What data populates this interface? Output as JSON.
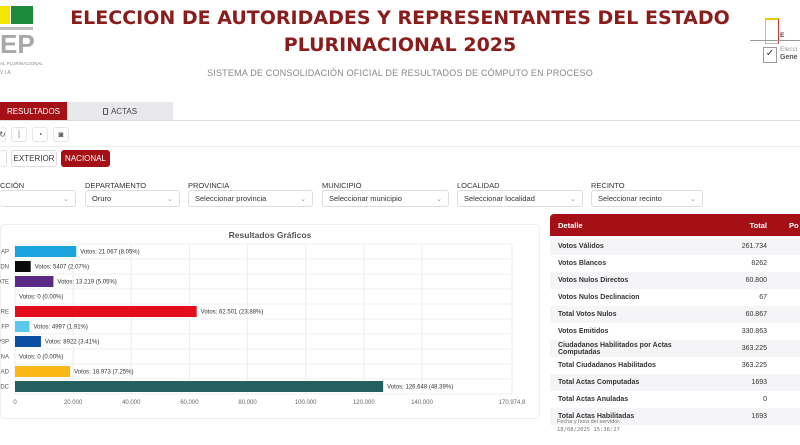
{
  "header": {
    "title_line1": "ELECCION DE AUTORIDADES Y REPRESENTANTES DEL ESTADO",
    "title_line2": "PLURINACIONAL 2025",
    "subtitle": "SISTEMA DE CONSOLIDACIÓN OFICIAL DE RESULTADOS DE CÓMPUTO EN PROCESO",
    "logo_left_text": "EP",
    "logo_left_line1": "AL PLURINACIONAL",
    "logo_left_line2": "V I A",
    "logo_right_line1": "E",
    "logo_right_line2": "Elecci",
    "logo_right_line3": "Gene"
  },
  "tabs": [
    {
      "label": "RESULTADOS",
      "active": true
    },
    {
      "label": "ACTAS",
      "icon": "tablet-icon",
      "active": false
    }
  ],
  "toolbar_icons": [
    "refresh-icon",
    "bar-chart-icon",
    "pie-chart-icon",
    "camera-icon"
  ],
  "scope_buttons": [
    {
      "label": "EXTERIOR",
      "active": false
    },
    {
      "label": "NACIONAL",
      "active": true
    }
  ],
  "filters": [
    {
      "label": "CCIÓN",
      "value": ""
    },
    {
      "label": "DEPARTAMENTO",
      "value": "Oruro"
    },
    {
      "label": "PROVINCIA",
      "value": "Seleccionar provincia"
    },
    {
      "label": "MUNICIPIO",
      "value": "Seleccionar municipio"
    },
    {
      "label": "LOCALIDAD",
      "value": "Seleccionar localidad"
    },
    {
      "label": "RECINTO",
      "value": "Seleccionar recinto"
    }
  ],
  "chart_data": {
    "type": "bar",
    "orientation": "horizontal",
    "title": "Resultados Gráficos",
    "xlim": [
      0,
      170974.8
    ],
    "grid": true,
    "categories": [
      "AP",
      "DN",
      "ATE",
      "",
      "RE",
      "FP",
      "PSP",
      "NA",
      "AD",
      "DC"
    ],
    "values": [
      21067,
      5407,
      13219,
      0,
      62501,
      4997,
      8922,
      0,
      18973,
      126648
    ],
    "data_labels": [
      "Votos: 21.067 (8.05%)",
      "Votos: 5407 (2.07%)",
      "Votos: 13.219 (5.05%)",
      "Votos: 0 (0.00%)",
      "Votos: 62.501 (23.88%)",
      "Votos: 4997 (1.91%)",
      "Votos: 8922 (3.41%)",
      "Votos: 0 (0.00%)",
      "Votos: 18.973 (7.25%)",
      "Votos: 126.648 (48.39%)"
    ],
    "colors": [
      "#1ba3e0",
      "#0a0a0a",
      "#5b2a86",
      "#cccccc",
      "#e30d1c",
      "#5bc8ef",
      "#0b4ea2",
      "#cccccc",
      "#fbb716",
      "#23605e"
    ],
    "x_ticks": [
      0,
      20000,
      40000,
      60000,
      80000,
      100000,
      120000,
      140000,
      170974.8
    ],
    "x_tick_labels": [
      "0",
      "20.000",
      "40.000",
      "60.000",
      "80.000",
      "100.000",
      "120.000",
      "140.000",
      "170.974,8"
    ]
  },
  "table": {
    "headers": [
      "Detalle",
      "Total",
      "Po"
    ],
    "rows": [
      [
        "Votos Válidos",
        "261.734"
      ],
      [
        "Votos Blancos",
        "8262"
      ],
      [
        "Votos Nulos Directos",
        "60.800"
      ],
      [
        "Votos Nulos Declinacion",
        "67"
      ],
      [
        "Total Votos Nulos",
        "60.867"
      ],
      [
        "Votos Emitidos",
        "330.863"
      ],
      [
        "Ciudadanos Habilitados por Actas Computadas",
        "363.225"
      ],
      [
        "Total Ciudadanos Habilitados",
        "363.225"
      ],
      [
        "Total Actas Computadas",
        "1693"
      ],
      [
        "Total Actas Anuladas",
        "0"
      ],
      [
        "Total Actas Habilitadas",
        "1693"
      ]
    ]
  },
  "footer": {
    "label": "Fecha y hora del servidor:",
    "datetime": "18/08/2025 15:36:27"
  },
  "colors": {
    "brand": "#a50f16",
    "title": "#8a1c1c"
  }
}
